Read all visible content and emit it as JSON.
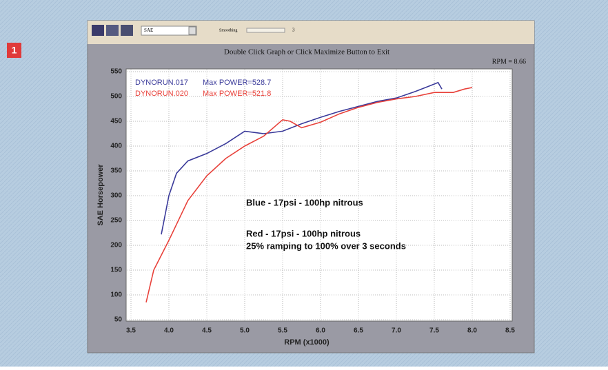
{
  "badge": "1",
  "window": {
    "units": "SAE",
    "smoothing_label": "Smoothing",
    "smoothing_value": "3",
    "caption": "Double Click Graph or Click Maximize Button to Exit",
    "rpm_readout": "RPM = 8.66"
  },
  "chart_data": {
    "type": "line",
    "xlabel": "RPM (x1000)",
    "ylabel": "SAE Horsepower",
    "xlim": [
      3.5,
      8.5
    ],
    "xticks": [
      3.5,
      {
        "value": 4,
        "label": "4.0"
      },
      4.5,
      {
        "value": 5,
        "label": "5.0"
      },
      5.5,
      {
        "value": 6,
        "label": "6.0"
      },
      6.5,
      {
        "value": 7,
        "label": "7.0"
      },
      7.5,
      {
        "value": 8,
        "label": "8.0"
      },
      8.5
    ],
    "ylim": [
      50,
      550
    ],
    "yticks": [
      50,
      100,
      150,
      200,
      250,
      300,
      350,
      400,
      450,
      500,
      550
    ],
    "grid": true,
    "series": [
      {
        "name": "DYNORUN.017",
        "max_label": "Max POWER=528.7",
        "color": "#3a3a9a",
        "x": [
          3.9,
          4.0,
          4.1,
          4.25,
          4.5,
          4.75,
          5.0,
          5.25,
          5.5,
          5.75,
          6.0,
          6.25,
          6.5,
          6.75,
          7.0,
          7.25,
          7.5,
          7.55,
          7.6
        ],
        "values": [
          222,
          300,
          345,
          370,
          385,
          405,
          430,
          425,
          430,
          445,
          458,
          470,
          480,
          490,
          497,
          510,
          525,
          528,
          515
        ]
      },
      {
        "name": "DYNORUN.020",
        "max_label": "Max POWER=521.8",
        "color": "#e8413a",
        "x": [
          3.7,
          3.8,
          3.9,
          4.0,
          4.25,
          4.5,
          4.75,
          5.0,
          5.25,
          5.5,
          5.6,
          5.75,
          6.0,
          6.25,
          6.5,
          6.75,
          7.0,
          7.25,
          7.5,
          7.75,
          7.9,
          8.0
        ],
        "values": [
          85,
          150,
          180,
          210,
          290,
          340,
          375,
          400,
          420,
          453,
          450,
          437,
          448,
          465,
          478,
          488,
          495,
          500,
          508,
          508,
          515,
          518
        ]
      }
    ],
    "annotations": [
      "Blue - 17psi - 100hp nitrous",
      "Red - 17psi - 100hp nitrous",
      "25% ramping to 100% over 3 seconds"
    ]
  }
}
